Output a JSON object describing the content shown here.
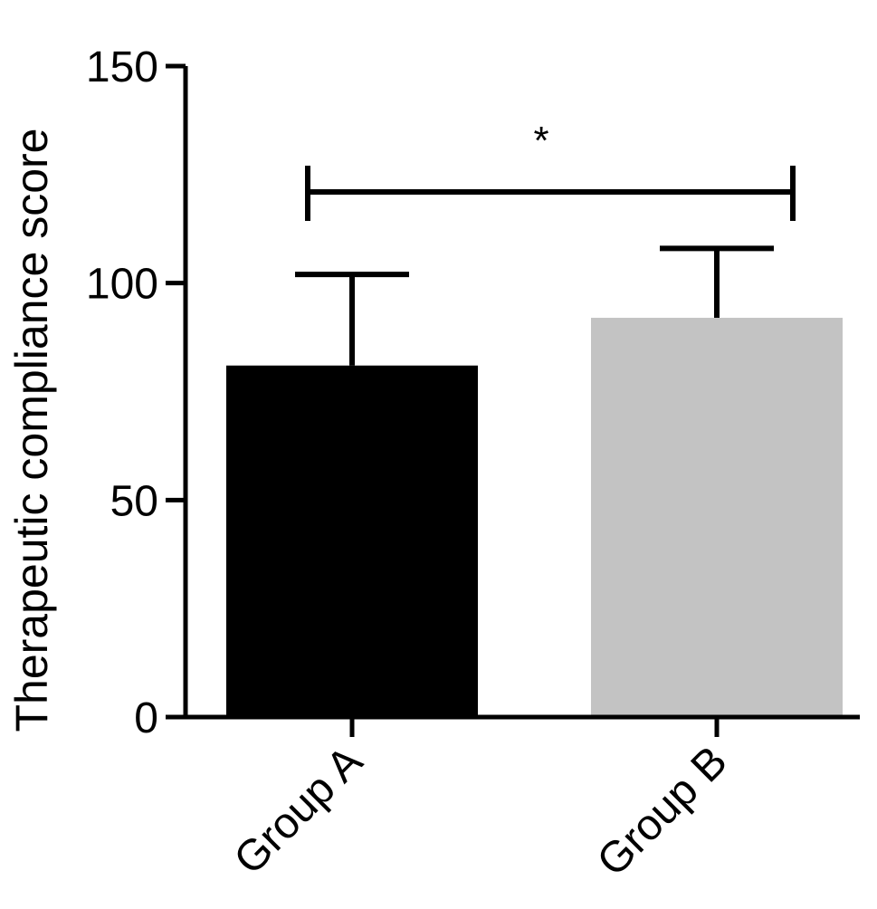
{
  "chart_data": {
    "type": "bar",
    "title": "",
    "xlabel": "",
    "ylabel": "Therapeutic compliance score",
    "categories": [
      "Group A",
      "Group B"
    ],
    "values": [
      81,
      92
    ],
    "error_upper": [
      102,
      108
    ],
    "colors": [
      "#000000",
      "#c3c3c3"
    ],
    "ylim": [
      0,
      150
    ],
    "yticks": [
      0,
      50,
      100,
      150
    ],
    "ytick_labels": [
      "0",
      "50",
      "100",
      "150"
    ],
    "grid": false,
    "legend": "none",
    "significance": {
      "between": [
        "Group A",
        "Group B"
      ],
      "label": "*",
      "y": 121
    }
  }
}
